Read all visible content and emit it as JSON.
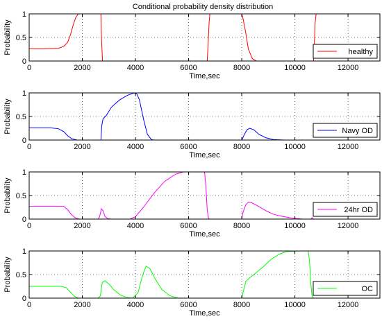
{
  "chart_data": {
    "title": "Conditional probability density distribution",
    "type": "line",
    "panels": [
      {
        "series_name": "healthy",
        "color": "#ff0000",
        "xlabel": "Time,sec",
        "ylabel": "Probability",
        "xlim": [
          0,
          13200
        ],
        "ylim": [
          0,
          1
        ],
        "xticks": [
          0,
          2000,
          4000,
          6000,
          8000,
          10000,
          12000
        ],
        "yticks": [
          0,
          0.5,
          1
        ],
        "grid": true,
        "legend_position": "bottom-right",
        "points": [
          [
            0,
            0.26
          ],
          [
            600,
            0.26
          ],
          [
            1100,
            0.27
          ],
          [
            1300,
            0.31
          ],
          [
            1450,
            0.4
          ],
          [
            1550,
            0.55
          ],
          [
            1650,
            0.75
          ],
          [
            1750,
            0.92
          ],
          [
            1850,
            1.0
          ],
          [
            2700,
            1.0
          ],
          [
            2720,
            0.5
          ],
          [
            2760,
            0.0
          ],
          [
            6700,
            0.0
          ],
          [
            6730,
            0.3
          ],
          [
            6770,
            0.8
          ],
          [
            6800,
            1.0
          ],
          [
            8000,
            1.0
          ],
          [
            8050,
            0.9
          ],
          [
            8150,
            0.6
          ],
          [
            8250,
            0.25
          ],
          [
            8400,
            0.05
          ],
          [
            8550,
            0.0
          ],
          [
            10700,
            0.0
          ],
          [
            10730,
            0.3
          ],
          [
            10760,
            0.8
          ],
          [
            10800,
            1.0
          ],
          [
            13200,
            1.0
          ]
        ]
      },
      {
        "series_name": "Navy OD",
        "color": "#0000ff",
        "xlabel": "Time,sec",
        "ylabel": "Probability",
        "xlim": [
          0,
          13200
        ],
        "ylim": [
          0,
          1
        ],
        "xticks": [
          0,
          2000,
          4000,
          6000,
          8000,
          10000,
          12000
        ],
        "yticks": [
          0,
          0.5,
          1
        ],
        "grid": true,
        "legend_position": "bottom-right",
        "points": [
          [
            0,
            0.26
          ],
          [
            800,
            0.26
          ],
          [
            1100,
            0.24
          ],
          [
            1300,
            0.18
          ],
          [
            1450,
            0.09
          ],
          [
            1600,
            0.03
          ],
          [
            1800,
            0.0
          ],
          [
            2700,
            0.0
          ],
          [
            2730,
            0.3
          ],
          [
            2780,
            0.45
          ],
          [
            2900,
            0.52
          ],
          [
            3100,
            0.7
          ],
          [
            3400,
            0.85
          ],
          [
            3700,
            0.95
          ],
          [
            3950,
            1.0
          ],
          [
            4050,
            0.98
          ],
          [
            4150,
            0.85
          ],
          [
            4300,
            0.45
          ],
          [
            4450,
            0.12
          ],
          [
            4600,
            0.01
          ],
          [
            4700,
            0.0
          ],
          [
            8000,
            0.0
          ],
          [
            8100,
            0.12
          ],
          [
            8200,
            0.22
          ],
          [
            8300,
            0.25
          ],
          [
            8450,
            0.22
          ],
          [
            8650,
            0.12
          ],
          [
            8900,
            0.05
          ],
          [
            9200,
            0.01
          ],
          [
            9600,
            0.0
          ],
          [
            13200,
            0.0
          ]
        ]
      },
      {
        "series_name": "24hr OD",
        "color": "#ff00ff",
        "xlabel": "Time,sec",
        "ylabel": "Probability",
        "xlim": [
          0,
          13200
        ],
        "ylim": [
          0,
          1
        ],
        "xticks": [
          0,
          2000,
          4000,
          6000,
          8000,
          10000,
          12000
        ],
        "yticks": [
          0,
          0.5,
          1
        ],
        "grid": true,
        "legend_position": "bottom-right",
        "points": [
          [
            0,
            0.27
          ],
          [
            1300,
            0.27
          ],
          [
            1450,
            0.2
          ],
          [
            1600,
            0.09
          ],
          [
            1750,
            0.02
          ],
          [
            1900,
            0.0
          ],
          [
            2600,
            0.0
          ],
          [
            2650,
            0.05
          ],
          [
            2720,
            0.22
          ],
          [
            2780,
            0.18
          ],
          [
            2850,
            0.06
          ],
          [
            2950,
            0.01
          ],
          [
            3100,
            0.0
          ],
          [
            3800,
            0.0
          ],
          [
            4000,
            0.05
          ],
          [
            4300,
            0.25
          ],
          [
            4700,
            0.55
          ],
          [
            5100,
            0.8
          ],
          [
            5500,
            0.95
          ],
          [
            5800,
            1.0
          ],
          [
            6600,
            1.0
          ],
          [
            6650,
            0.7
          ],
          [
            6700,
            0.2
          ],
          [
            6750,
            0.01
          ],
          [
            6800,
            0.0
          ],
          [
            8000,
            0.0
          ],
          [
            8050,
            0.15
          ],
          [
            8150,
            0.3
          ],
          [
            8250,
            0.36
          ],
          [
            8400,
            0.34
          ],
          [
            8600,
            0.28
          ],
          [
            8900,
            0.18
          ],
          [
            9200,
            0.1
          ],
          [
            9500,
            0.06
          ],
          [
            9900,
            0.02
          ],
          [
            10300,
            0.0
          ],
          [
            10600,
            0.0
          ],
          [
            10650,
            0.03
          ],
          [
            10700,
            0.0
          ],
          [
            13200,
            0.0
          ]
        ]
      },
      {
        "series_name": "OC",
        "color": "#00ff00",
        "xlabel": "Time,sec",
        "ylabel": "Probability",
        "xlim": [
          0,
          13200
        ],
        "ylim": [
          0,
          1
        ],
        "xticks": [
          0,
          2000,
          4000,
          6000,
          8000,
          10000,
          12000
        ],
        "yticks": [
          0,
          0.5,
          1
        ],
        "grid": true,
        "legend_position": "bottom-right",
        "points": [
          [
            0,
            0.25
          ],
          [
            1200,
            0.25
          ],
          [
            1400,
            0.22
          ],
          [
            1550,
            0.13
          ],
          [
            1700,
            0.04
          ],
          [
            1850,
            0.0
          ],
          [
            2600,
            0.0
          ],
          [
            2680,
            0.05
          ],
          [
            2750,
            0.33
          ],
          [
            2850,
            0.37
          ],
          [
            3000,
            0.3
          ],
          [
            3200,
            0.17
          ],
          [
            3450,
            0.06
          ],
          [
            3700,
            0.01
          ],
          [
            3900,
            0.0
          ],
          [
            4100,
            0.12
          ],
          [
            4250,
            0.45
          ],
          [
            4400,
            0.68
          ],
          [
            4550,
            0.62
          ],
          [
            4750,
            0.4
          ],
          [
            5000,
            0.18
          ],
          [
            5300,
            0.05
          ],
          [
            5600,
            0.0
          ],
          [
            8000,
            0.0
          ],
          [
            8150,
            0.35
          ],
          [
            8300,
            0.43
          ],
          [
            8500,
            0.52
          ],
          [
            8800,
            0.66
          ],
          [
            9100,
            0.82
          ],
          [
            9400,
            0.93
          ],
          [
            9700,
            0.99
          ],
          [
            10200,
            1.0
          ],
          [
            10500,
            1.0
          ],
          [
            10550,
            0.8
          ],
          [
            10600,
            0.3
          ],
          [
            10650,
            0.03
          ],
          [
            10700,
            0.0
          ],
          [
            13200,
            0.0
          ]
        ]
      }
    ]
  }
}
